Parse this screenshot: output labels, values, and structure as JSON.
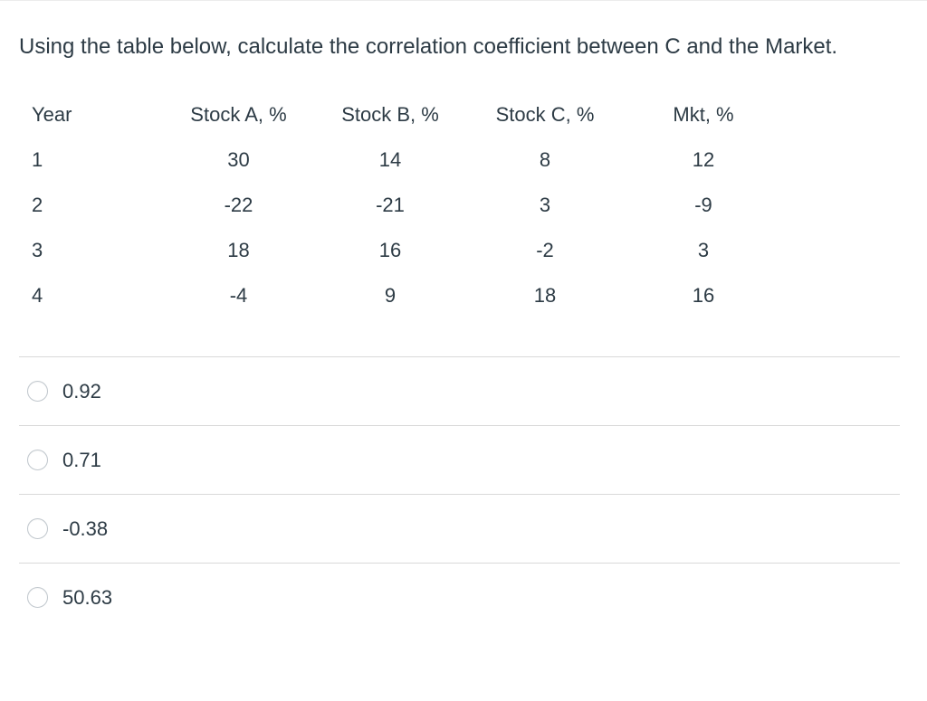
{
  "question": {
    "text": "Using the table below, calculate the correlation coefficient between C and the Market."
  },
  "table": {
    "columns": [
      "Year",
      "Stock A, %",
      "Stock B, %",
      "Stock C, %",
      "Mkt, %"
    ],
    "rows": [
      {
        "cells": [
          "1",
          "30",
          "14",
          "8",
          "12"
        ]
      },
      {
        "cells": [
          "2",
          "-22",
          "-21",
          "3",
          "-9"
        ]
      },
      {
        "cells": [
          "3",
          "18",
          "16",
          "-2",
          "3"
        ]
      },
      {
        "cells": [
          "4",
          "-4",
          "9",
          "18",
          "16"
        ]
      }
    ]
  },
  "options": [
    {
      "label": "0.92",
      "selected": false
    },
    {
      "label": "0.71",
      "selected": false
    },
    {
      "label": "-0.38",
      "selected": false
    },
    {
      "label": "50.63",
      "selected": false
    }
  ],
  "colors": {
    "text": "#2d3b45",
    "divider": "#d9d9d9",
    "radio_border": "#c0c7cd",
    "background": "#ffffff"
  }
}
